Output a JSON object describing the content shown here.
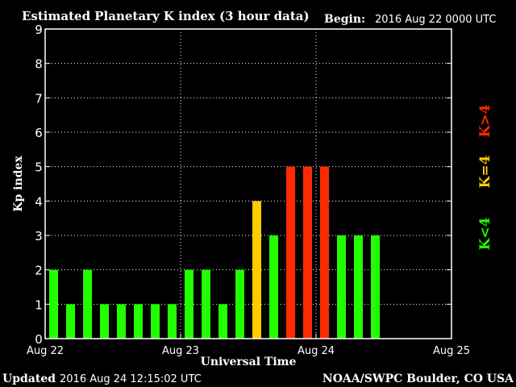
{
  "header": {
    "title": "Estimated Planetary K index (3 hour data)",
    "begin_label": "Begin:",
    "begin_value": "2016 Aug 22 0000 UTC"
  },
  "footer": {
    "updated_label": "Updated",
    "updated_value": "2016 Aug 24 12:15:02 UTC",
    "source": "NOAA/SWPC Boulder, CO USA"
  },
  "legend": {
    "low": "K<4",
    "mid": "K=4",
    "high": "K>4"
  },
  "colors": {
    "background": "#000000",
    "foreground": "#ffffff",
    "low": "#22ff00",
    "mid": "#ffcc00",
    "high": "#ff2a00"
  },
  "chart_data": {
    "type": "bar",
    "xlabel": "Universal Time",
    "ylabel": "Kp index",
    "ylim": [
      0,
      9
    ],
    "yticks": [
      "0",
      "1",
      "2",
      "3",
      "4",
      "5",
      "6",
      "7",
      "8",
      "9"
    ],
    "xticks": [
      "Aug 22",
      "Aug 23",
      "Aug 24",
      "Aug 25"
    ],
    "grid": true,
    "bins_total": 24,
    "values": [
      2,
      1,
      2,
      1,
      1,
      1,
      1,
      1,
      2,
      2,
      1,
      2,
      4,
      3,
      5,
      5,
      5,
      3,
      3,
      3
    ]
  }
}
